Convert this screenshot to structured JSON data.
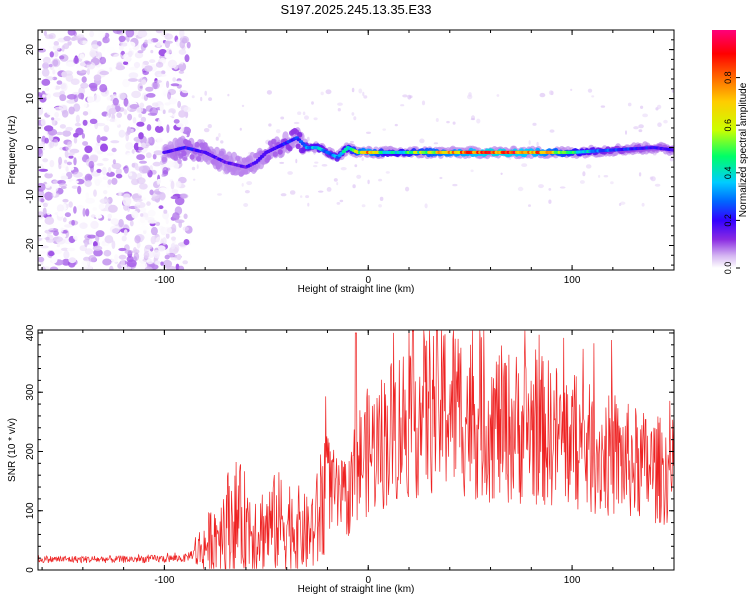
{
  "figure": {
    "title": "S197.2025.245.13.35.E33"
  },
  "colorbar": {
    "label": "Normalized spectral amplitude",
    "ticks": [
      "0.0",
      "0.2",
      "0.4",
      "0.6",
      "0.8"
    ],
    "tick_values": [
      0.0,
      0.2,
      0.4,
      0.6,
      0.8
    ],
    "range": [
      0,
      1
    ],
    "colors": [
      "#ffffff",
      "#d6b8f2",
      "#8a2be2",
      "#3300ff",
      "#0066ff",
      "#00ccff",
      "#00ff66",
      "#ccff00",
      "#ffcc00",
      "#ff5500",
      "#ff0000",
      "#ff007a"
    ]
  },
  "chart_data": [
    {
      "type": "heatmap",
      "title": "S197.2025.245.13.35.E33",
      "xlabel": "Height of straight line (km)",
      "ylabel": "Frequency (Hz)",
      "xlim": [
        -162,
        150
      ],
      "ylim": [
        -25,
        24
      ],
      "x_ticks": [
        -100,
        0,
        100
      ],
      "x_tick_labels": [
        "-100",
        "0",
        "100"
      ],
      "y_ticks": [
        -20,
        -10,
        0,
        10,
        20
      ],
      "y_tick_labels": [
        "-20",
        "-10",
        "0",
        "10",
        "20"
      ],
      "noise_region_x": [
        -162,
        -88
      ],
      "ridge": {
        "x": [
          -100,
          -90,
          -80,
          -70,
          -60,
          -55,
          -50,
          -45,
          -40,
          -35,
          -30,
          -25,
          -20,
          -15,
          -10,
          -5,
          0,
          10,
          20,
          40,
          60,
          80,
          100,
          120,
          140,
          150
        ],
        "freq": [
          -1,
          0,
          -1,
          -3,
          -4,
          -3,
          -1,
          0,
          1,
          2,
          0,
          0,
          -1,
          -2,
          0,
          -1,
          -1,
          -1,
          -1,
          -1,
          -1,
          -1,
          -1,
          -0.5,
          0,
          -0.5
        ],
        "amplitude": [
          0.25,
          0.3,
          0.28,
          0.25,
          0.25,
          0.25,
          0.28,
          0.3,
          0.35,
          0.35,
          0.45,
          0.5,
          0.4,
          0.45,
          0.55,
          0.7,
          0.85,
          0.5,
          0.6,
          0.8,
          0.95,
          0.9,
          0.6,
          0.35,
          0.3,
          0.3
        ]
      }
    },
    {
      "type": "line",
      "title": "",
      "xlabel": "Height of straight line (km)",
      "ylabel": "SNR (10 * v/v)",
      "xlim": [
        -162,
        150
      ],
      "ylim": [
        0,
        405
      ],
      "x_ticks": [
        -100,
        0,
        100
      ],
      "x_tick_labels": [
        "-100",
        "0",
        "100"
      ],
      "y_ticks": [
        0,
        100,
        200,
        300,
        400
      ],
      "y_tick_labels": [
        "0",
        "100",
        "200",
        "300",
        "400"
      ],
      "color": "#ee2222",
      "series": [
        {
          "name": "SNR",
          "x": [
            -162,
            -140,
            -120,
            -100,
            -90,
            -85,
            -80,
            -75,
            -70,
            -65,
            -60,
            -55,
            -50,
            -45,
            -40,
            -35,
            -30,
            -25,
            -22,
            -20,
            -15,
            -10,
            -5,
            0,
            5,
            10,
            20,
            30,
            40,
            45,
            50,
            60,
            70,
            80,
            90,
            100,
            110,
            120,
            130,
            140,
            150
          ],
          "values": [
            18,
            18,
            18,
            19,
            20,
            30,
            40,
            60,
            80,
            90,
            80,
            70,
            70,
            80,
            80,
            70,
            60,
            80,
            130,
            150,
            120,
            120,
            180,
            200,
            210,
            230,
            260,
            270,
            280,
            270,
            260,
            250,
            240,
            240,
            230,
            220,
            200,
            190,
            180,
            170,
            165
          ]
        }
      ]
    }
  ]
}
